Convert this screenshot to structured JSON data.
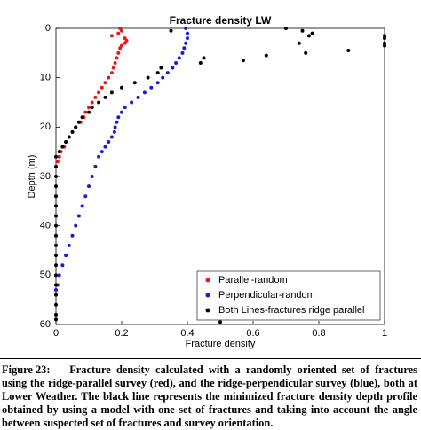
{
  "chart_data": {
    "type": "scatter",
    "title": "Fracture density LW",
    "xlabel": "Fracture density",
    "ylabel": "Depth (m)",
    "xlim": [
      0,
      1
    ],
    "xticks": [
      0,
      0.2,
      0.4,
      0.6,
      0.8,
      1
    ],
    "ylim": [
      0,
      60
    ],
    "yticks": [
      0,
      10,
      20,
      30,
      40,
      50,
      60
    ],
    "y_reversed": true,
    "legend": "lower right",
    "series": [
      {
        "name": "Parallel-random",
        "color": "#e31a1c",
        "x": [
          0.195,
          0.2,
          0.17,
          0.19,
          0.21,
          0.215,
          0.21,
          0.2,
          0.195,
          0.19,
          0.185,
          0.18,
          0.175,
          0.17,
          0.16,
          0.15,
          0.14,
          0.13,
          0.12,
          0.11,
          0.1,
          0.09,
          0.085,
          0.075,
          0.06,
          0.05,
          0.04,
          0.03,
          0.025,
          0.015,
          0.01,
          0.005
        ],
        "values": [
          0,
          0.5,
          1.5,
          1,
          2,
          2.5,
          3,
          3.5,
          4,
          5,
          6,
          7,
          8,
          9,
          10,
          11,
          12,
          13,
          14,
          15,
          16,
          17,
          18,
          19,
          20,
          21,
          22,
          23,
          24,
          25,
          26,
          27
        ]
      },
      {
        "name": "Perpendicular-random",
        "color": "#1a1adb",
        "x": [
          0.395,
          0.4,
          0.4,
          0.395,
          0.39,
          0.385,
          0.375,
          0.365,
          0.355,
          0.34,
          0.325,
          0.31,
          0.29,
          0.27,
          0.25,
          0.23,
          0.21,
          0.2,
          0.19,
          0.185,
          0.18,
          0.178,
          0.17,
          0.16,
          0.15,
          0.14,
          0.13,
          0.12,
          0.11,
          0.1,
          0.09,
          0.08,
          0.07,
          0.06,
          0.05,
          0.04,
          0.03,
          0.02,
          0.01,
          0.005,
          0
        ],
        "values": [
          0,
          1,
          2,
          3,
          4,
          5,
          6,
          7,
          8,
          9,
          10,
          11,
          12,
          13,
          14,
          15,
          16,
          17,
          18,
          19,
          20,
          21,
          22,
          23,
          24,
          25,
          26,
          28,
          30,
          32,
          34,
          36,
          38,
          40,
          42,
          44,
          46,
          48,
          50,
          52,
          53
        ]
      },
      {
        "name": "Both Lines-fractures ridge parallel",
        "color": "#000000",
        "x": [
          0.35,
          0.7,
          0.75,
          0.78,
          0.77,
          0.74,
          0.76,
          0.89,
          1,
          1,
          1,
          1,
          0.64,
          0.57,
          0.45,
          0.44,
          0.32,
          0.31,
          0.28,
          0.24,
          0.2,
          0.17,
          0.15,
          0.13,
          0.11,
          0.1,
          0.08,
          0.07,
          0.06,
          0.05,
          0.04,
          0.03,
          0.02,
          0.01,
          0,
          0,
          0,
          0,
          0,
          0,
          0,
          0,
          0,
          0,
          0,
          0,
          0,
          0,
          0,
          0,
          0,
          0,
          0.5
        ],
        "values": [
          0.5,
          0,
          0.5,
          1,
          1.5,
          3,
          5,
          4.5,
          1.5,
          2,
          3,
          3.5,
          5.5,
          6.5,
          6,
          7,
          8,
          9,
          10,
          11,
          12,
          13,
          14,
          15,
          16,
          17,
          18,
          19,
          20,
          21,
          22,
          23,
          24,
          25,
          26,
          28,
          30,
          32,
          34,
          36,
          38,
          40,
          42,
          44,
          46,
          48,
          50,
          52,
          54,
          56,
          58,
          59,
          59.5
        ]
      }
    ]
  },
  "caption": {
    "label": "Figure 23:",
    "text": "Fracture density calculated with a randomly oriented set of fractures using the ridge-parallel survey (red), and the ridge-perpendicular survey (blue), both at Lower Weather. The black line represents the minimized fracture density depth profile obtained by using a model with one set of fractures and taking into account the angle between suspected set of fractures and survey orientation."
  }
}
